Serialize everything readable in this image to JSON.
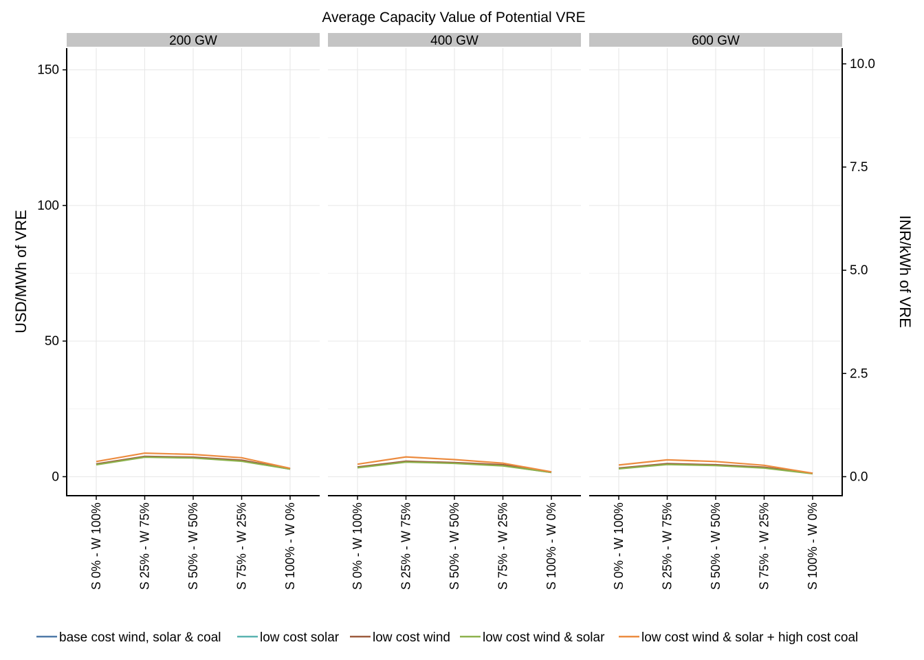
{
  "chart_data": {
    "type": "line",
    "title": "Average Capacity Value of Potential VRE",
    "ylabel": "USD/MWh of VRE",
    "y2label": "INR/kWh of VRE",
    "xlabel": "",
    "ylim": [
      -7,
      158
    ],
    "yticks": [
      0,
      50,
      100,
      150
    ],
    "y2ticks": [
      "0.0",
      "2.5",
      "5.0",
      "7.5",
      "10.0"
    ],
    "y2_per_y": 0.0657,
    "grid": true,
    "legend_position": "bottom",
    "categories": [
      "S 0% - W 100%",
      "S 25% - W 75%",
      "S 50% - W 50%",
      "S 75% - W 25%",
      "S 100% - W 0%"
    ],
    "series_colors": {
      "base cost wind, solar & coal": "#4e79a7",
      "low cost solar": "#59b3b0",
      "low cost wind": "#9c5a3c",
      "low cost wind & solar": "#8cb14c",
      "low cost wind & solar + high cost coal": "#ec8b3f"
    },
    "panels": [
      {
        "title": "200 GW",
        "series": [
          {
            "name": "base cost wind, solar & coal",
            "values": [
              4.5,
              7.3,
              7.0,
              5.8,
              2.8
            ]
          },
          {
            "name": "low cost solar",
            "values": [
              4.6,
              7.4,
              7.1,
              6.0,
              2.9
            ]
          },
          {
            "name": "low cost wind",
            "values": [
              4.7,
              7.5,
              7.2,
              6.1,
              2.9
            ]
          },
          {
            "name": "low cost wind & solar",
            "values": [
              4.4,
              7.2,
              6.9,
              5.7,
              2.8
            ]
          },
          {
            "name": "low cost wind & solar + high cost coal",
            "values": [
              5.6,
              8.7,
              8.2,
              7.0,
              3.1
            ]
          }
        ]
      },
      {
        "title": "400 GW",
        "series": [
          {
            "name": "base cost wind, solar & coal",
            "values": [
              3.4,
              5.5,
              5.0,
              4.1,
              1.6
            ]
          },
          {
            "name": "low cost solar",
            "values": [
              3.5,
              5.6,
              5.1,
              4.2,
              1.7
            ]
          },
          {
            "name": "low cost wind",
            "values": [
              3.6,
              5.7,
              5.2,
              4.4,
              1.7
            ]
          },
          {
            "name": "low cost wind & solar",
            "values": [
              3.3,
              5.4,
              4.9,
              4.0,
              1.6
            ]
          },
          {
            "name": "low cost wind & solar + high cost coal",
            "values": [
              4.6,
              7.3,
              6.3,
              5.0,
              1.8
            ]
          }
        ]
      },
      {
        "title": "600 GW",
        "series": [
          {
            "name": "base cost wind, solar & coal",
            "values": [
              3.0,
              4.6,
              4.2,
              3.3,
              1.2
            ]
          },
          {
            "name": "low cost solar",
            "values": [
              3.1,
              4.7,
              4.3,
              3.4,
              1.2
            ]
          },
          {
            "name": "low cost wind",
            "values": [
              3.2,
              4.8,
              4.4,
              3.5,
              1.3
            ]
          },
          {
            "name": "low cost wind & solar",
            "values": [
              2.9,
              4.5,
              4.1,
              3.2,
              1.1
            ]
          },
          {
            "name": "low cost wind & solar + high cost coal",
            "values": [
              4.3,
              6.2,
              5.6,
              4.2,
              1.3
            ]
          }
        ]
      }
    ]
  }
}
